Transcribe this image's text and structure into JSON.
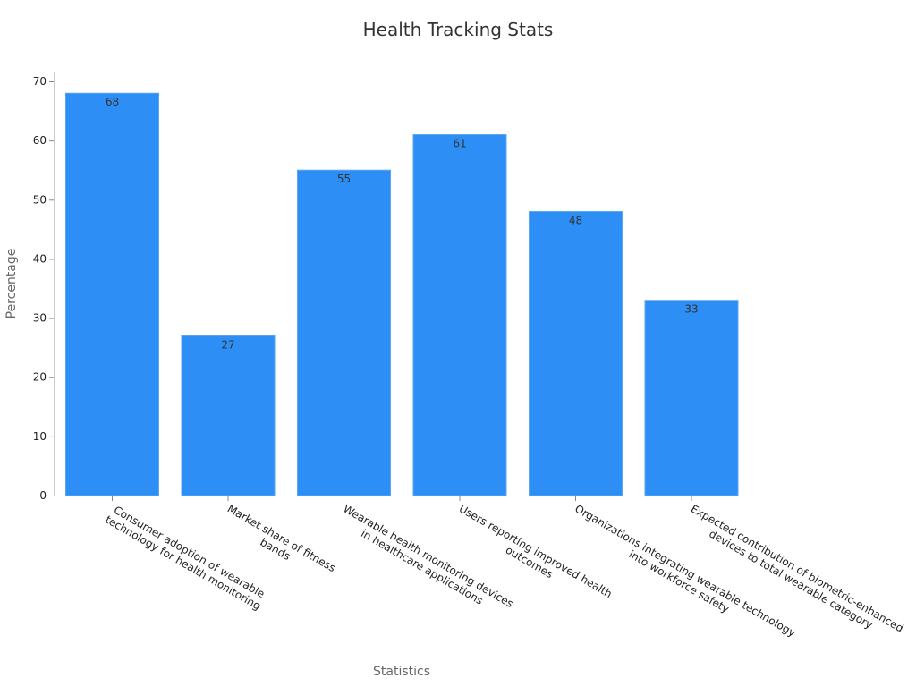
{
  "chart_data": {
    "type": "bar",
    "title": "Health Tracking Stats",
    "xlabel": "Statistics",
    "ylabel": "Percentage",
    "categories": [
      "Consumer adoption of wearable technology for health monitoring",
      "Market share of fitness bands",
      "Wearable health monitoring devices in healthcare applications",
      "Users reporting improved health outcomes",
      "Organizations integrating wearable technology into workforce safety",
      "Expected contribution of biometric-enhanced devices to total wearable category"
    ],
    "category_lines": [
      [
        "Consumer adoption of wearable",
        "technology for health monitoring"
      ],
      [
        "Market share of fitness",
        "bands"
      ],
      [
        "Wearable health monitoring devices",
        "in healthcare applications"
      ],
      [
        "Users reporting improved health",
        "outcomes"
      ],
      [
        "Organizations integrating wearable technology",
        "into workforce safety"
      ],
      [
        "Expected contribution of biometric-enhanced",
        "devices to total wearable category"
      ]
    ],
    "values": [
      68,
      27,
      55,
      61,
      48,
      33
    ],
    "value_labels": [
      "68",
      "27",
      "55",
      "61",
      "48",
      "33"
    ],
    "ylim": [
      0,
      70
    ],
    "yticks": [
      0,
      10,
      20,
      30,
      40,
      50,
      60,
      70
    ],
    "ytick_labels": [
      "0",
      "10",
      "20",
      "30",
      "40",
      "50",
      "60",
      "70"
    ],
    "bar_color": "#2d8ff5",
    "grid": false,
    "legend": "none"
  }
}
